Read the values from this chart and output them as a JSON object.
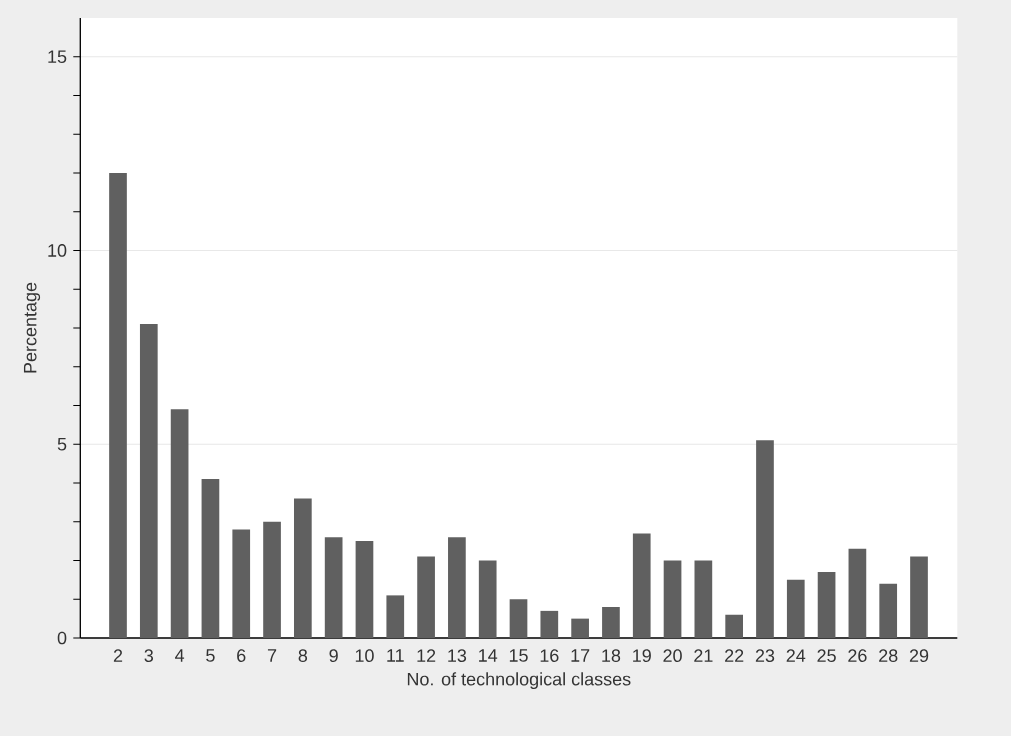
{
  "chart_data": {
    "type": "bar",
    "xlabel": "No. of technological classes",
    "ylabel": "Percentage",
    "categories": [
      "2",
      "3",
      "4",
      "5",
      "6",
      "7",
      "8",
      "9",
      "10",
      "11",
      "12",
      "13",
      "14",
      "15",
      "16",
      "17",
      "18",
      "19",
      "20",
      "21",
      "22",
      "23",
      "24",
      "25",
      "26",
      "28",
      "29"
    ],
    "values": [
      12.0,
      8.1,
      5.9,
      4.1,
      2.8,
      3.0,
      3.6,
      2.6,
      2.5,
      1.1,
      2.1,
      2.6,
      2.0,
      1.0,
      0.7,
      0.5,
      0.8,
      2.7,
      2.0,
      2.0,
      0.6,
      5.1,
      1.5,
      1.7,
      2.3,
      1.4,
      2.1
    ],
    "color": "#606060",
    "ylim": [
      0,
      16
    ],
    "yticks": [
      0,
      {
        "value": 1,
        "label": null
      },
      {
        "value": 2,
        "label": null
      },
      {
        "value": 3,
        "label": null
      },
      {
        "value": 4,
        "label": null
      },
      5,
      {
        "value": 6,
        "label": null
      },
      {
        "value": 7,
        "label": null
      },
      {
        "value": 8,
        "label": null
      },
      {
        "value": 9,
        "label": null
      },
      10,
      {
        "value": 11,
        "label": null
      },
      {
        "value": 12,
        "label": null
      },
      {
        "value": 13,
        "label": null
      },
      {
        "value": 14,
        "label": null
      },
      15
    ],
    "grid": "y"
  }
}
